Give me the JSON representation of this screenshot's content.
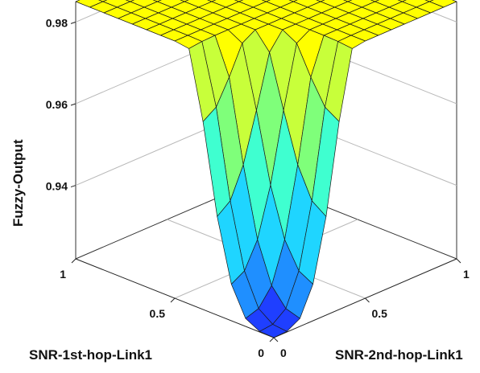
{
  "chart_data": {
    "type": "surface3d",
    "title": "",
    "xlabel": "SNR-1st-hop-Link1",
    "ylabel": "SNR-2nd-hop-Link1",
    "zlabel": "Fuzzy-Output",
    "xlim": [
      0,
      1
    ],
    "ylim": [
      0,
      1
    ],
    "zlim": [
      0.922,
      0.985
    ],
    "x_ticks": [
      {
        "value": 0,
        "label": "0"
      },
      {
        "value": 0.5,
        "label": "0.5"
      },
      {
        "value": 1,
        "label": "1"
      }
    ],
    "y_ticks": [
      {
        "value": 0,
        "label": "0"
      },
      {
        "value": 0.5,
        "label": "0.5"
      },
      {
        "value": 1,
        "label": "1"
      }
    ],
    "z_ticks": [
      {
        "value": 0.94,
        "label": "0.94"
      },
      {
        "value": 0.96,
        "label": "0.96"
      },
      {
        "value": 0.98,
        "label": "0.98"
      }
    ],
    "grid": true,
    "grid_points": 15,
    "surface": {
      "description_model": "plateau at max with a rounded pit toward the (0,0) corner",
      "z_max": 0.985,
      "z_min": 0.922,
      "pit_radius": 0.44
    },
    "colormap": [
      "#1f3fff",
      "#1f8fff",
      "#1fd5ff",
      "#3fffd0",
      "#7fff7a",
      "#c8ff3a",
      "#ffff00"
    ]
  }
}
